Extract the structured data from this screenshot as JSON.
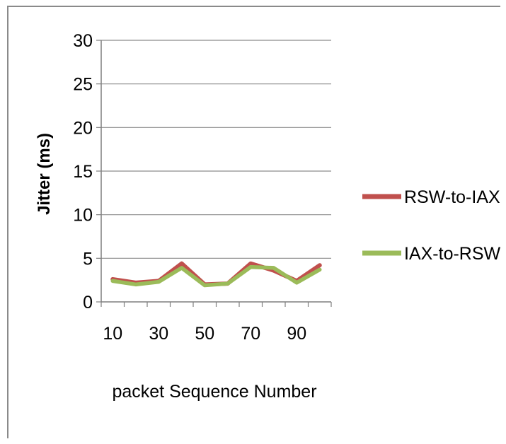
{
  "chart_data": {
    "type": "line",
    "title": "",
    "xlabel": "packet Sequence Number",
    "ylabel": "Jitter (ms)",
    "x": [
      10,
      20,
      30,
      40,
      50,
      60,
      70,
      80,
      90,
      100
    ],
    "x_tick_labels": [
      "10",
      "30",
      "50",
      "70",
      "90"
    ],
    "y_ticks": [
      0,
      5,
      10,
      15,
      20,
      25,
      30
    ],
    "ylim": [
      0,
      30
    ],
    "grid": true,
    "legend_position": "right",
    "series": [
      {
        "name": "RSW-to-IAX",
        "color": "#c0504d",
        "values": [
          2.6,
          2.2,
          2.4,
          4.4,
          2.0,
          2.1,
          4.4,
          3.6,
          2.4,
          4.2
        ]
      },
      {
        "name": "IAX-to-RSW",
        "color": "#9bbb59",
        "values": [
          2.4,
          2.0,
          2.3,
          3.9,
          1.9,
          2.1,
          4.0,
          3.9,
          2.2,
          3.7
        ]
      }
    ]
  }
}
